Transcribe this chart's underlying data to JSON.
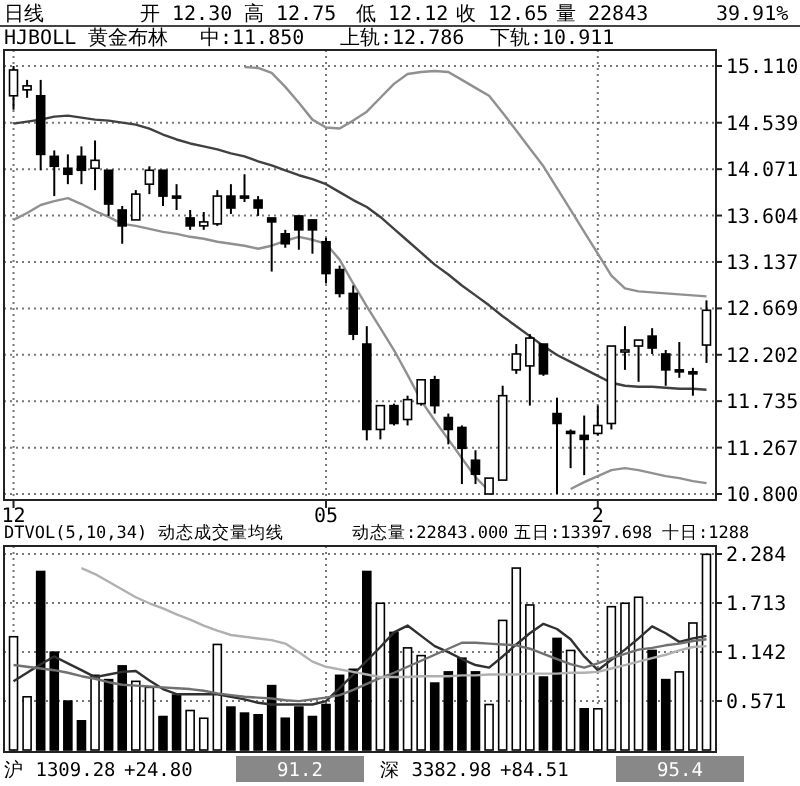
{
  "chart_data": [
    {
      "type": "candlestick",
      "title": "HJBOLL 黄金布林",
      "annotations": [
        "日线",
        "开 12.30",
        "高 12.75",
        "低 12.12",
        "收 12.65",
        "量 22843",
        "39.91%",
        "中:11.850",
        "上轨:12.786",
        "下轨:10.911"
      ],
      "categories": [
        "12",
        null,
        null,
        null,
        null,
        null,
        null,
        null,
        null,
        null,
        null,
        null,
        null,
        null,
        null,
        null,
        null,
        null,
        null,
        null,
        null,
        null,
        null,
        "05",
        null,
        null,
        null,
        null,
        null,
        null,
        null,
        null,
        null,
        null,
        null,
        null,
        null,
        null,
        null,
        null,
        null,
        null,
        null,
        "2",
        null,
        null,
        null,
        null,
        null,
        null,
        null,
        null
      ],
      "ylim": [
        10.8,
        15.11
      ],
      "yticks": [
        {
          "value": 15.11,
          "label": "15.110"
        },
        14.539,
        14.071,
        13.604,
        13.137,
        12.669,
        12.202,
        11.735,
        11.267,
        {
          "value": 10.8,
          "label": "10.800"
        }
      ],
      "grid": true,
      "ohlc": [
        [
          14.81,
          15.11,
          14.67,
          15.07
        ],
        [
          14.87,
          14.97,
          14.79,
          14.91
        ],
        [
          14.81,
          14.97,
          14.06,
          14.22
        ],
        [
          14.2,
          14.26,
          13.8,
          14.1
        ],
        [
          14.08,
          14.22,
          13.92,
          14.02
        ],
        [
          14.2,
          14.3,
          13.92,
          14.06
        ],
        [
          14.08,
          14.36,
          13.86,
          14.16
        ],
        [
          14.06,
          14.06,
          13.6,
          13.72
        ],
        [
          13.66,
          13.7,
          13.32,
          13.5
        ],
        [
          13.56,
          13.86,
          13.56,
          13.82
        ],
        [
          13.92,
          14.1,
          13.82,
          14.06
        ],
        [
          14.06,
          14.06,
          13.7,
          13.8
        ],
        [
          13.8,
          13.92,
          13.66,
          13.78
        ],
        [
          13.58,
          13.66,
          13.46,
          13.5
        ],
        [
          13.5,
          13.64,
          13.46,
          13.54
        ],
        [
          13.52,
          13.86,
          13.5,
          13.8
        ],
        [
          13.8,
          13.92,
          13.62,
          13.68
        ],
        [
          13.8,
          14.02,
          13.74,
          13.78
        ],
        [
          13.76,
          13.8,
          13.6,
          13.68
        ],
        [
          13.58,
          13.58,
          13.04,
          13.54
        ],
        [
          13.42,
          13.46,
          13.28,
          13.32
        ],
        [
          13.6,
          13.6,
          13.26,
          13.46
        ],
        [
          13.56,
          13.56,
          13.22,
          13.46
        ],
        [
          13.34,
          13.38,
          12.92,
          13.02
        ],
        [
          13.06,
          13.1,
          12.78,
          12.82
        ],
        [
          12.82,
          12.9,
          12.35,
          12.41
        ],
        [
          12.31,
          12.49,
          11.34,
          11.45
        ],
        [
          11.45,
          11.69,
          11.35,
          11.69
        ],
        [
          11.69,
          11.71,
          11.49,
          11.51
        ],
        [
          11.55,
          11.79,
          11.49,
          11.75
        ],
        [
          11.71,
          11.95,
          11.69,
          11.95
        ],
        [
          11.95,
          11.99,
          11.61,
          11.69
        ],
        [
          11.57,
          11.61,
          11.3,
          11.45
        ],
        [
          11.47,
          11.49,
          10.9,
          11.26
        ],
        [
          11.14,
          11.24,
          10.9,
          11.0
        ],
        [
          10.8,
          10.96,
          10.8,
          10.96
        ],
        [
          10.94,
          11.89,
          10.94,
          11.79
        ],
        [
          12.05,
          12.31,
          12.01,
          12.21
        ],
        [
          12.09,
          12.41,
          11.69,
          12.37
        ],
        [
          12.31,
          12.31,
          11.99,
          12.01
        ],
        [
          11.61,
          11.77,
          10.8,
          11.51
        ],
        [
          11.43,
          11.45,
          11.06,
          11.41
        ],
        [
          11.39,
          11.59,
          10.99,
          11.35
        ],
        [
          11.41,
          11.69,
          11.39,
          11.49
        ],
        [
          11.51,
          12.29,
          11.45,
          12.29
        ],
        [
          12.23,
          12.49,
          12.05,
          12.25
        ],
        [
          12.29,
          12.35,
          11.93,
          12.35
        ],
        [
          12.39,
          12.47,
          12.21,
          12.27
        ],
        [
          12.21,
          12.25,
          11.89,
          12.05
        ],
        [
          12.05,
          12.33,
          11.97,
          12.03
        ],
        [
          12.03,
          12.07,
          11.79,
          12.01
        ],
        [
          12.3,
          12.75,
          12.12,
          12.65
        ]
      ],
      "series": [
        {
          "type": "line",
          "color": "#404040",
          "values": [
            14.53,
            14.55,
            14.57,
            14.6,
            14.61,
            14.59,
            14.57,
            14.56,
            14.54,
            14.52,
            14.48,
            14.42,
            14.37,
            14.33,
            14.3,
            14.27,
            14.23,
            14.2,
            14.15,
            14.11,
            14.06,
            14.01,
            13.97,
            13.92,
            13.84,
            13.76,
            13.69,
            13.59,
            13.47,
            13.35,
            13.23,
            13.11,
            13.01,
            12.9,
            12.8,
            12.7,
            12.59,
            12.49,
            12.39,
            12.29,
            12.2,
            12.13,
            12.06,
            11.99,
            11.92,
            11.89,
            11.88,
            11.88,
            11.87,
            11.86,
            11.86,
            11.85
          ]
        },
        {
          "type": "line",
          "color": "#909090",
          "values": [
            null,
            null,
            null,
            null,
            null,
            null,
            null,
            null,
            null,
            null,
            null,
            null,
            null,
            null,
            null,
            null,
            null,
            15.1,
            15.09,
            15.04,
            14.9,
            14.74,
            14.57,
            14.49,
            14.48,
            14.56,
            14.65,
            14.79,
            14.93,
            15.03,
            15.05,
            15.06,
            15.05,
            14.97,
            14.89,
            14.81,
            14.64,
            14.46,
            14.28,
            14.1,
            13.88,
            13.66,
            13.44,
            13.22,
            13.0,
            12.87,
            12.84,
            12.83,
            12.82,
            12.81,
            12.8,
            12.79
          ]
        },
        {
          "type": "line",
          "color": "#909090",
          "values": [
            13.56,
            13.63,
            13.71,
            13.75,
            13.78,
            13.72,
            13.65,
            13.59,
            13.52,
            13.5,
            13.47,
            13.44,
            13.42,
            13.39,
            13.37,
            13.34,
            13.32,
            13.3,
            13.27,
            13.3,
            13.35,
            13.39,
            13.36,
            13.32,
            13.16,
            12.92,
            12.69,
            12.47,
            12.25,
            12.0,
            11.74,
            11.54,
            11.35,
            11.16,
            10.97,
            10.83,
            null,
            null,
            null,
            null,
            null,
            10.85,
            10.92,
            10.98,
            11.04,
            11.06,
            11.04,
            11.01,
            10.98,
            10.96,
            10.93,
            10.91
          ]
        }
      ]
    },
    {
      "type": "bar",
      "title": "DTVOL(5,10,34) 动态成交量均线",
      "annotations": [
        "动态量:22843.000",
        "五日:13397.698",
        "十日:1288",
        "沪 1309.28",
        "+24.80",
        "91.2",
        "深 3382.98",
        "+84.51",
        "95.4"
      ],
      "categories": [
        null,
        null,
        null,
        null,
        null,
        null,
        null,
        null,
        null,
        null,
        null,
        null,
        null,
        null,
        null,
        null,
        null,
        null,
        null,
        null,
        null,
        null,
        null,
        null,
        null,
        null,
        null,
        null,
        null,
        null,
        null,
        null,
        null,
        null,
        null,
        null,
        null,
        null,
        null,
        null,
        null,
        null,
        null,
        null,
        null,
        null,
        null,
        null,
        null,
        null,
        null,
        null
      ],
      "ylim": [
        0,
        2.284
      ],
      "yticks": [
        0.571,
        1.142,
        1.713,
        2.284
      ],
      "tick_labels": "y",
      "grid": true,
      "series": [
        {
          "values": [
            1.32,
            0.62,
            2.08,
            1.14,
            0.57,
            0.34,
            0.87,
            0.82,
            0.98,
            0.8,
            0.73,
            0.39,
            0.64,
            0.46,
            0.37,
            1.23,
            0.5,
            0.43,
            0.41,
            0.75,
            0.37,
            0.5,
            0.39,
            0.53,
            0.87,
            0.94,
            2.08,
            1.71,
            1.37,
            1.19,
            1.1,
            0.78,
            0.91,
            1.07,
            0.91,
            0.53,
            1.51,
            2.12,
            1.69,
            0.85,
            1.3,
            1.16,
            0.48,
            0.48,
            1.67,
            1.71,
            1.78,
            1.16,
            0.82,
            0.91,
            1.48,
            2.28
          ],
          "colors": [
            "#ffffff",
            "#ffffff",
            "#000000",
            "#000000",
            "#000000",
            "#000000",
            "#ffffff",
            "#000000",
            "#000000",
            "#ffffff",
            "#ffffff",
            "#000000",
            "#000000",
            "#ffffff",
            "#ffffff",
            "#ffffff",
            "#000000",
            "#000000",
            "#000000",
            "#000000",
            "#000000",
            "#000000",
            "#000000",
            "#000000",
            "#000000",
            "#000000",
            "#000000",
            "#ffffff",
            "#000000",
            "#ffffff",
            "#ffffff",
            "#000000",
            "#000000",
            "#000000",
            "#000000",
            "#ffffff",
            "#ffffff",
            "#ffffff",
            "#ffffff",
            "#000000",
            "#000000",
            "#ffffff",
            "#000000",
            "#ffffff",
            "#ffffff",
            "#ffffff",
            "#ffffff",
            "#000000",
            "#000000",
            "#ffffff",
            "#ffffff",
            "#ffffff"
          ]
        },
        {
          "type": "line",
          "color": "#303030",
          "values": [
            0.8,
            0.9,
            1.0,
            1.09,
            1.01,
            0.93,
            0.85,
            0.88,
            0.91,
            0.92,
            0.81,
            0.71,
            0.65,
            0.65,
            0.65,
            0.65,
            0.62,
            0.59,
            0.55,
            0.53,
            0.53,
            0.53,
            0.53,
            0.57,
            0.72,
            0.88,
            1.04,
            1.2,
            1.37,
            1.45,
            1.33,
            1.21,
            1.14,
            1.06,
            0.99,
            0.96,
            1.09,
            1.23,
            1.36,
            1.47,
            1.41,
            1.29,
            1.09,
            0.93,
            1.05,
            1.17,
            1.3,
            1.44,
            1.36,
            1.26,
            1.3,
            1.33
          ]
        },
        {
          "type": "line",
          "color": "#707070",
          "values": [
            0.99,
            0.97,
            0.95,
            0.93,
            0.9,
            0.86,
            0.83,
            0.79,
            0.76,
            0.75,
            0.74,
            0.73,
            0.72,
            0.71,
            0.69,
            0.66,
            0.64,
            0.62,
            0.61,
            0.6,
            0.58,
            0.57,
            0.59,
            0.61,
            0.64,
            0.7,
            0.77,
            0.84,
            0.9,
            0.97,
            1.04,
            1.11,
            1.18,
            1.25,
            1.25,
            1.24,
            1.23,
            1.22,
            1.18,
            1.12,
            1.06,
            1.0,
            0.96,
            1.01,
            1.07,
            1.12,
            1.17,
            1.19,
            1.22,
            1.24,
            1.27,
            1.29
          ]
        },
        {
          "type": "line",
          "color": "#b0b0b0",
          "values": [
            null,
            null,
            null,
            null,
            null,
            2.12,
            2.05,
            1.96,
            1.87,
            1.78,
            1.71,
            1.65,
            1.58,
            1.52,
            1.45,
            1.39,
            1.34,
            1.32,
            1.3,
            1.28,
            1.24,
            1.14,
            1.03,
            0.97,
            0.94,
            0.91,
            0.88,
            0.85,
            0.85,
            0.85,
            0.86,
            0.86,
            0.86,
            0.87,
            0.87,
            0.88,
            0.88,
            0.88,
            0.89,
            0.89,
            0.89,
            0.9,
            0.9,
            0.91,
            0.95,
            0.99,
            1.03,
            1.07,
            1.11,
            1.16,
            1.2,
            1.21
          ]
        }
      ]
    }
  ]
}
